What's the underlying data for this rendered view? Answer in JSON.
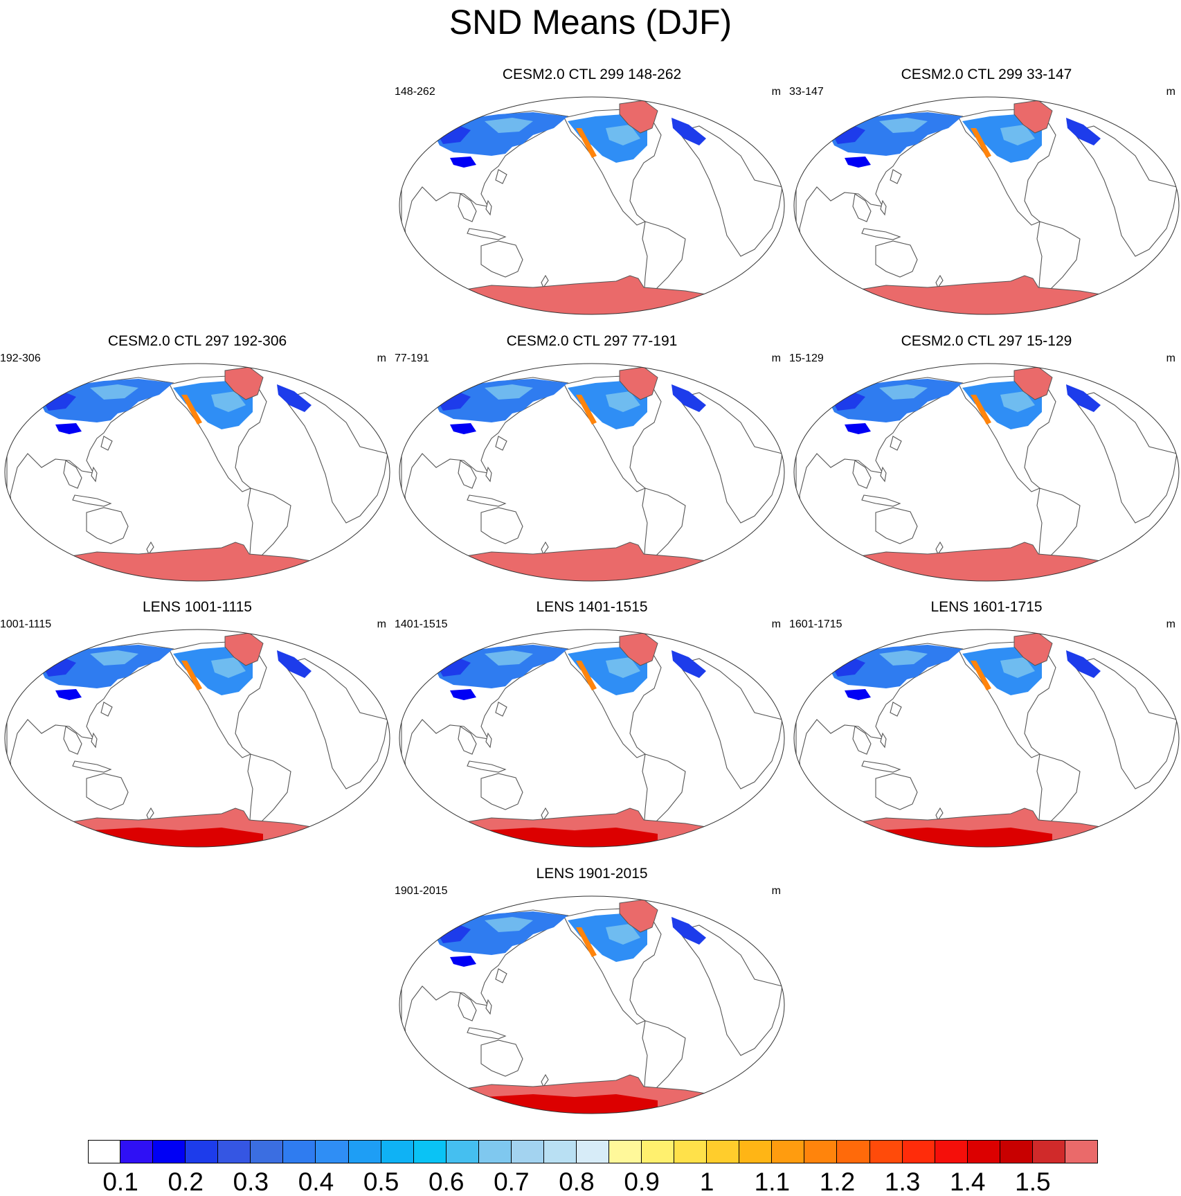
{
  "title": "SND Means (DJF)",
  "panels": [
    {
      "title": "CESM2.0 CTL 299 148-262",
      "left": "148-262",
      "right": "m",
      "variant": "ctl"
    },
    {
      "title": "CESM2.0 CTL 299 33-147",
      "left": "33-147",
      "right": "m",
      "variant": "ctl"
    },
    {
      "title": "CESM2.0 CTL 297 192-306",
      "left": "192-306",
      "right": "m",
      "variant": "ctl"
    },
    {
      "title": "CESM2.0 CTL 297 77-191",
      "left": "77-191",
      "right": "m",
      "variant": "ctl"
    },
    {
      "title": "CESM2.0 CTL 297 15-129",
      "left": "15-129",
      "right": "m",
      "variant": "ctl"
    },
    {
      "title": "LENS 1001-1115",
      "left": "1001-1115",
      "right": "m",
      "variant": "lens"
    },
    {
      "title": "LENS 1401-1515",
      "left": "1401-1515",
      "right": "m",
      "variant": "lens"
    },
    {
      "title": "LENS 1601-1715",
      "left": "1601-1715",
      "right": "m",
      "variant": "lens"
    },
    {
      "title": "LENS 1901-2015",
      "left": "1901-2015",
      "right": "m",
      "variant": "lens"
    }
  ],
  "colorbar": {
    "labels": [
      "0.1",
      "0.2",
      "0.3",
      "0.4",
      "0.5",
      "0.6",
      "0.7",
      "0.8",
      "0.9",
      "1",
      "1.1",
      "1.2",
      "1.3",
      "1.4",
      "1.5"
    ],
    "colors": [
      "#ffffff",
      "#2f10f5",
      "#0000f5",
      "#1d3ceb",
      "#3556e3",
      "#3b6ee1",
      "#2f7cf0",
      "#2f8ef5",
      "#1e9ef5",
      "#0fb2f5",
      "#0ac3f5",
      "#45bff0",
      "#7fc8ef",
      "#a3d3f0",
      "#b9e0f3",
      "#d7ecf8",
      "#fff89a",
      "#fff06e",
      "#ffe14a",
      "#ffcd2c",
      "#ffb515",
      "#ff9c0f",
      "#ff840c",
      "#ff6a0a",
      "#ff4b0a",
      "#ff2c0a",
      "#f50f0a",
      "#dc0000",
      "#c80000",
      "#d02a2a",
      "#ea6a6a"
    ]
  }
}
